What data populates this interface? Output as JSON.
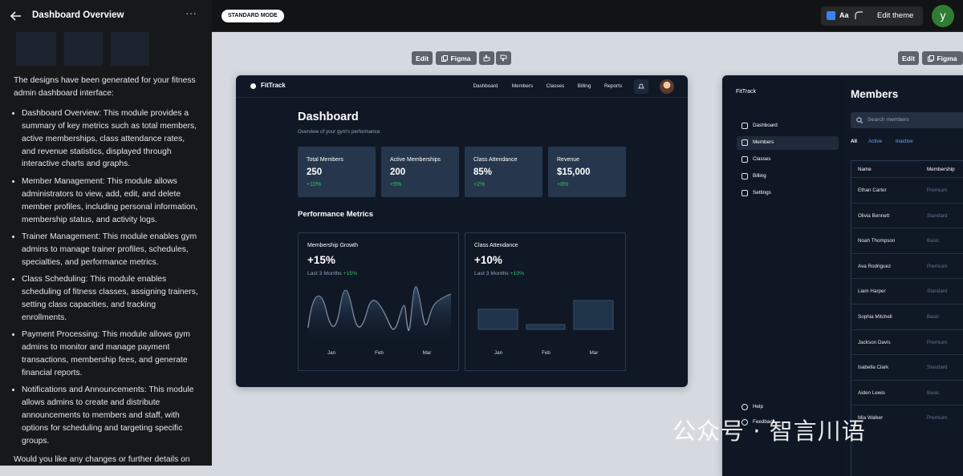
{
  "header": {
    "title": "Dashboard Overview",
    "mode": "STANDARD MODE",
    "theme_label": "Aa",
    "theme_button": "Edit theme",
    "avatar": "y"
  },
  "chat": {
    "intro": "The designs have been generated for your fitness admin dashboard interface:",
    "bullets": [
      "Dashboard Overview: This module provides a summary of key metrics such as total members, active memberships, class attendance rates, and revenue statistics, displayed through interactive charts and graphs.",
      "Member Management: This module allows administrators to view, add, edit, and delete member profiles, including personal information, membership status, and activity logs.",
      "Trainer Management: This module enables gym admins to manage trainer profiles, schedules, specialties, and performance metrics.",
      "Class Scheduling: This module enables scheduling of fitness classes, assigning trainers, setting class capacities, and tracking enrollments.",
      "Payment Processing: This module allows gym admins to monitor and manage payment transactions, membership fees, and generate financial reports.",
      "Notifications and Announcements: This module allows admins to create and distribute announcements to members and staff, with options for scheduling and targeting specific groups."
    ],
    "outro": "Would you like any changes or further details on these designs?"
  },
  "preview_1": {
    "toolbar": {
      "edit": "Edit",
      "figma": "Figma"
    },
    "brand": "FitTrack",
    "nav": [
      "Dashboard",
      "Members",
      "Classes",
      "Billing",
      "Reports"
    ],
    "title": "Dashboard",
    "subtitle": "Overview of your gym's performance",
    "stats": [
      {
        "label": "Total Members",
        "value": "250",
        "change": "+10%"
      },
      {
        "label": "Active Memberships",
        "value": "200",
        "change": "+5%"
      },
      {
        "label": "Class Attendance",
        "value": "85%",
        "change": "+2%"
      },
      {
        "label": "Revenue",
        "value": "$15,000",
        "change": "+8%"
      }
    ],
    "section_title": "Performance Metrics",
    "charts": [
      {
        "title": "Membership Growth",
        "value": "+15%",
        "period": "Last 3 Months",
        "change": "+15%",
        "months": [
          "Jan",
          "Feb",
          "Mar"
        ]
      },
      {
        "title": "Class Attendance",
        "value": "+10%",
        "period": "Last 3 Months",
        "change": "+10%",
        "months": [
          "Jan",
          "Feb",
          "Mar"
        ]
      }
    ]
  },
  "preview_2": {
    "toolbar": {
      "edit": "Edit",
      "figma": "Figma"
    },
    "brand": "FitTrack",
    "sidebar": [
      "Dashboard",
      "Members",
      "Classes",
      "Billing",
      "Settings"
    ],
    "footer_links": [
      "Help",
      "Feedback"
    ],
    "title": "Members",
    "search_placeholder": "Search members",
    "tabs": [
      "All",
      "Active",
      "Inactive"
    ],
    "columns": [
      "Name",
      "Membership"
    ],
    "rows": [
      [
        "Ethan Carter",
        "Premium"
      ],
      [
        "Olivia Bennett",
        "Standard"
      ],
      [
        "Noah Thompson",
        "Basic"
      ],
      [
        "Ava Rodriguez",
        "Premium"
      ],
      [
        "Liam Harper",
        "Standard"
      ],
      [
        "Sophia Mitchell",
        "Basic"
      ],
      [
        "Jackson Davis",
        "Premium"
      ],
      [
        "Isabella Clark",
        "Standard"
      ],
      [
        "Aiden Lewis",
        "Basic"
      ],
      [
        "Mia Walker",
        "Premium"
      ]
    ]
  },
  "watermark": "公众号 · 智言川语"
}
